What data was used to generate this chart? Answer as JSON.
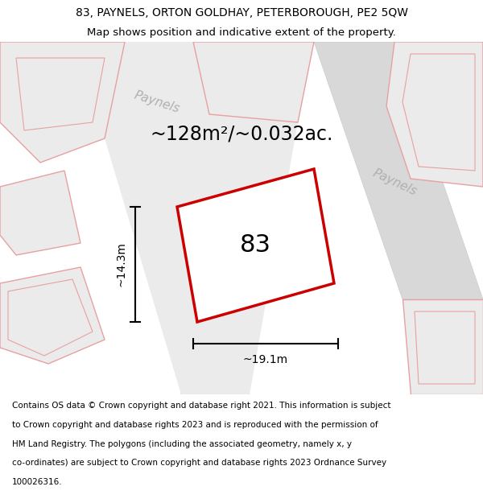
{
  "title_line1": "83, PAYNELS, ORTON GOLDHAY, PETERBOROUGH, PE2 5QW",
  "title_line2": "Map shows position and indicative extent of the property.",
  "area_text": "~128m²/~0.032ac.",
  "label_number": "83",
  "dim_width": "~19.1m",
  "dim_height": "~14.3m",
  "road_label_1": "Paynels",
  "road_label_2": "Paynels",
  "footer_lines": [
    "Contains OS data © Crown copyright and database right 2021. This information is subject",
    "to Crown copyright and database rights 2023 and is reproduced with the permission of",
    "HM Land Registry. The polygons (including the associated geometry, namely x, y",
    "co-ordinates) are subject to Crown copyright and database rights 2023 Ordnance Survey",
    "100026316."
  ],
  "bg_color": "#ffffff",
  "plot_fill": "#ffffff",
  "plot_edge": "#cc0000",
  "neighbor_fill": "#ebebeb",
  "neighbor_edge": "#e8a0a0",
  "road_fill": "#d8d8d8",
  "road_edge": "#cccccc",
  "title_fs": 10,
  "subtitle_fs": 9.5,
  "area_fs": 17,
  "label_fs": 22,
  "dim_fs": 10,
  "road_label_fs": 11,
  "footer_fs": 7.5
}
